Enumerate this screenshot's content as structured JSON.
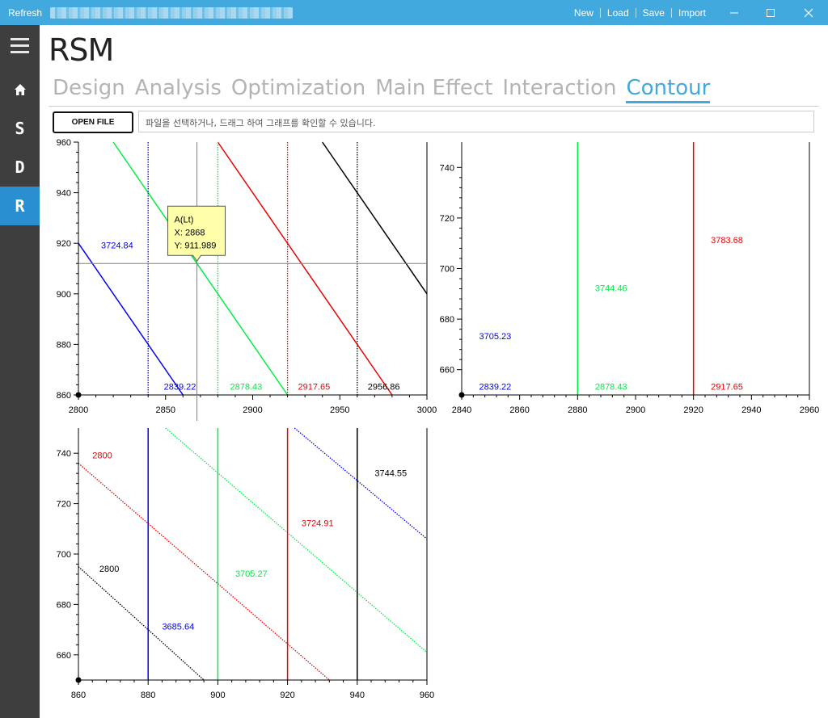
{
  "titlebar": {
    "refresh_label": "Refresh",
    "menu": [
      "New",
      "Load",
      "Save",
      "Import"
    ]
  },
  "sidebar": {
    "items": [
      {
        "id": "home",
        "label": "⌂"
      },
      {
        "id": "s",
        "label": "S"
      },
      {
        "id": "d",
        "label": "D"
      },
      {
        "id": "r",
        "label": "R",
        "active": true
      }
    ]
  },
  "app": {
    "title": "RSM"
  },
  "tabs": [
    {
      "label": "Design"
    },
    {
      "label": "Analysis"
    },
    {
      "label": "Optimization"
    },
    {
      "label": "Main Effect"
    },
    {
      "label": "Interaction"
    },
    {
      "label": "Contour",
      "active": true
    }
  ],
  "toolbar": {
    "open_file_label": "OPEN FILE",
    "file_placeholder": "파일을 선택하거나, 드래그 하여 그래프를 확인할 수 있습니다."
  },
  "colors": {
    "accent": "#41a9dd",
    "sidebar": "#3e3e3e",
    "sidebar_active": "#2a8fd0",
    "blue": "#0000ff",
    "green": "#00ee44",
    "red": "#ee0000",
    "black": "#000000"
  },
  "chart_data": [
    {
      "type": "line",
      "x_ticks": [
        2800,
        2850,
        2900,
        2950,
        3000
      ],
      "y_ticks": [
        860,
        880,
        900,
        920,
        940,
        960
      ],
      "xlim": [
        2800,
        3000
      ],
      "ylim": [
        860,
        960
      ],
      "solid_lines": [
        {
          "color": "#0000ff",
          "points": [
            [
              2800,
              920
            ],
            [
              2860,
              860
            ]
          ]
        },
        {
          "color": "#00ee44",
          "points": [
            [
              2820,
              960
            ],
            [
              2920,
              860
            ]
          ]
        },
        {
          "color": "#ee0000",
          "points": [
            [
              2880,
              960
            ],
            [
              2980,
              860
            ]
          ]
        },
        {
          "color": "#000000",
          "points": [
            [
              2940,
              960
            ],
            [
              3000,
              900
            ]
          ]
        }
      ],
      "dotted_vlines": [
        {
          "color": "#0000ff",
          "x": 2840
        },
        {
          "color": "#00ee44",
          "x": 2880
        },
        {
          "color": "#ee0000",
          "x": 2920
        },
        {
          "color": "#000000",
          "x": 2960
        }
      ],
      "labels": [
        {
          "text": "3724.84",
          "x": 2813,
          "y": 918,
          "color": "#0000ff"
        },
        {
          "text": "2839.22",
          "x": 2849,
          "y": 862,
          "color": "#0000ff"
        },
        {
          "text": "2878.43",
          "x": 2887,
          "y": 862,
          "color": "#00ee44"
        },
        {
          "text": "2917.65",
          "x": 2926,
          "y": 862,
          "color": "#ee0000"
        },
        {
          "text": "2956.86",
          "x": 2966,
          "y": 862,
          "color": "#000000"
        }
      ],
      "crosshair": {
        "x": 2868,
        "y": 911.989
      },
      "tooltip": {
        "line1": "A(Lt)",
        "line2": "X: 2868",
        "line3": "Y: 911.989"
      }
    },
    {
      "type": "line",
      "x_ticks": [
        2840,
        2860,
        2880,
        2900,
        2920,
        2940,
        2960
      ],
      "y_ticks": [
        660,
        680,
        700,
        720,
        740
      ],
      "xlim": [
        2840,
        2960
      ],
      "ylim": [
        650,
        750
      ],
      "solid_vlines": [
        {
          "color": "#00ee44",
          "x": 2880
        },
        {
          "color": "#ee0000",
          "x": 2920
        }
      ],
      "labels": [
        {
          "text": "3783.68",
          "x": 2926,
          "y": 710,
          "color": "#ee0000"
        },
        {
          "text": "3744.46",
          "x": 2886,
          "y": 691,
          "color": "#00ee44"
        },
        {
          "text": "3705.23",
          "x": 2846,
          "y": 672,
          "color": "#0000ff"
        },
        {
          "text": "2839.22",
          "x": 2846,
          "y": 652,
          "color": "#0000ff"
        },
        {
          "text": "2878.43",
          "x": 2886,
          "y": 652,
          "color": "#00ee44"
        },
        {
          "text": "2917.65",
          "x": 2926,
          "y": 652,
          "color": "#ee0000"
        }
      ]
    },
    {
      "type": "line",
      "x_ticks": [
        860,
        880,
        900,
        920,
        940,
        960
      ],
      "y_ticks": [
        660,
        680,
        700,
        720,
        740
      ],
      "xlim": [
        860,
        960
      ],
      "ylim": [
        650,
        750
      ],
      "solid_vlines": [
        {
          "color": "#0000ff",
          "x": 880
        },
        {
          "color": "#00ee44",
          "x": 900
        },
        {
          "color": "#ee0000",
          "x": 920
        },
        {
          "color": "#000000",
          "x": 940
        }
      ],
      "dotted_lines": [
        {
          "color": "#000000",
          "points": [
            [
              860,
              695
            ],
            [
              896,
              650
            ]
          ]
        },
        {
          "color": "#ee0000",
          "points": [
            [
              860,
              736
            ],
            [
              932,
              650
            ]
          ]
        },
        {
          "color": "#00ee44",
          "points": [
            [
              885,
              750
            ],
            [
              960,
              661
            ]
          ]
        },
        {
          "color": "#0000ff",
          "points": [
            [
              922,
              750
            ],
            [
              960,
              706
            ]
          ]
        }
      ],
      "labels": [
        {
          "text": "2800",
          "x": 864,
          "y": 738,
          "color": "#ee0000"
        },
        {
          "text": "3744.55",
          "x": 945,
          "y": 731,
          "color": "#000000"
        },
        {
          "text": "3724.91",
          "x": 924,
          "y": 711,
          "color": "#ee0000"
        },
        {
          "text": "2800",
          "x": 866,
          "y": 693,
          "color": "#000000"
        },
        {
          "text": "3705.27",
          "x": 905,
          "y": 691,
          "color": "#00ee44"
        },
        {
          "text": "3685.64",
          "x": 884,
          "y": 670,
          "color": "#0000ff"
        }
      ]
    }
  ]
}
